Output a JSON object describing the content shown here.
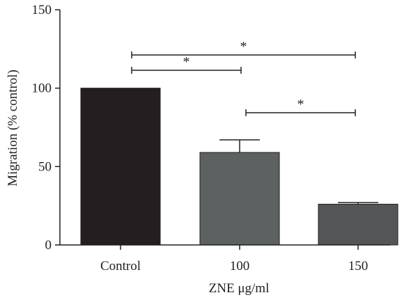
{
  "chart_data": {
    "type": "bar",
    "categories": [
      "Control",
      "100",
      "150"
    ],
    "values": [
      100,
      59,
      26
    ],
    "error_upper": [
      0,
      8,
      1
    ],
    "bar_colors": [
      "#231f20",
      "#5c6162",
      "#545556"
    ],
    "xlabel": "ZNE μg/ml",
    "ylabel": "Migration (% control)",
    "ylim": [
      0,
      150
    ],
    "yticks": [
      0,
      50,
      100,
      150
    ],
    "ytick_labels": [
      "0",
      "50",
      "100",
      "150"
    ],
    "grid": false,
    "significance": [
      {
        "from": 0,
        "to": 2,
        "label": "*"
      },
      {
        "from": 0,
        "to": 1,
        "label": "*"
      },
      {
        "from": 1,
        "to": 2,
        "label": "*"
      }
    ]
  }
}
